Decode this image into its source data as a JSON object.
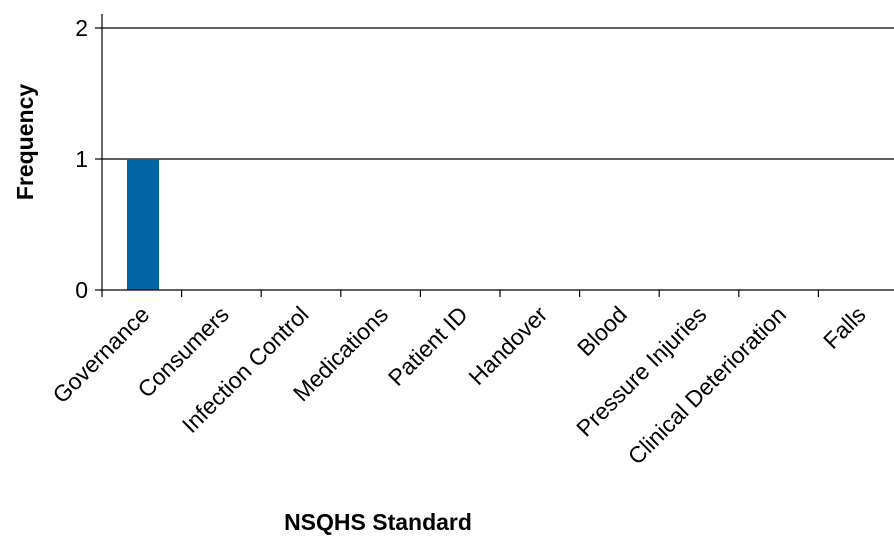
{
  "chart_data": {
    "type": "bar",
    "title": "",
    "xlabel": "NSQHS Standard",
    "ylabel": "Frequency",
    "categories": [
      "Governance",
      "Consumers",
      "Infection Control",
      "Medications",
      "Patient ID",
      "Handover",
      "Blood",
      "Pressure Injuries",
      "Clinical Deterioration",
      "Falls"
    ],
    "values": [
      1,
      0,
      0,
      0,
      0,
      0,
      0,
      0,
      0,
      0
    ],
    "ylim": [
      0,
      2
    ],
    "yticks": [
      0,
      1,
      2
    ],
    "grid": true,
    "legend": "none",
    "bar_color": "#0065a4"
  }
}
